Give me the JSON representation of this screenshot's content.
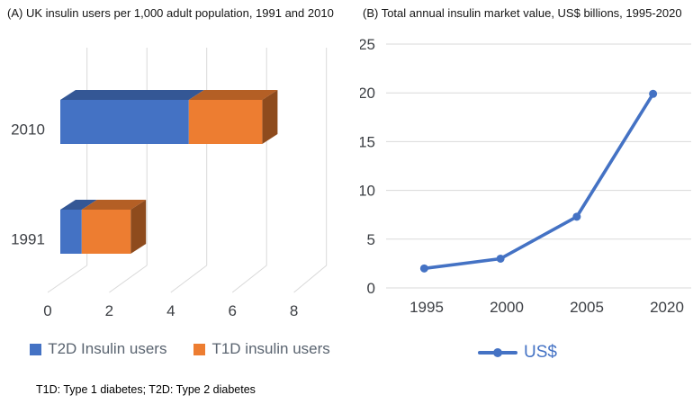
{
  "footnote": "T1D: Type 1 diabetes; T2D: Type 2 diabetes",
  "chart_data": [
    {
      "type": "bar",
      "variant": "3d-horizontal-stacked",
      "title": "(A) UK insulin users per 1,000 adult population, 1991 and 2010",
      "categories": [
        "2010",
        "1991"
      ],
      "series": [
        {
          "name": "T2D Insulin users",
          "color": "#4472C4",
          "values": [
            4.2,
            0.7
          ]
        },
        {
          "name": "T1D insulin users",
          "color": "#ED7D31",
          "values": [
            2.4,
            1.6
          ]
        }
      ],
      "xlim": [
        0,
        8
      ],
      "x_ticks": [
        0,
        2,
        4,
        6,
        8
      ],
      "grid": true,
      "legend_position": "bottom"
    },
    {
      "type": "line",
      "title": "(B) Total annual insulin market value, US$ billions, 1995-2020",
      "categories": [
        "1995",
        "2000",
        "2005",
        "2020"
      ],
      "series": [
        {
          "name": "US$",
          "color": "#4472C4",
          "values": [
            2.0,
            3.0,
            7.3,
            19.9
          ]
        }
      ],
      "ylim": [
        0,
        25
      ],
      "y_ticks": [
        0,
        5,
        10,
        15,
        20,
        25
      ],
      "grid": true,
      "legend_position": "bottom"
    }
  ]
}
